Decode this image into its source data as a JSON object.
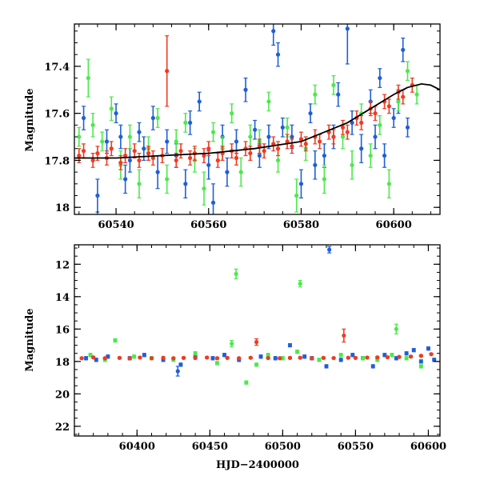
{
  "colors": {
    "blue": "#1f5fd6",
    "green": "#4de84d",
    "red": "#ee3b22",
    "model": "#000000",
    "frame": "#000000"
  },
  "chart_data": [
    {
      "type": "scatter",
      "title": "",
      "xlabel": "",
      "ylabel": "Magnitude",
      "xlim": [
        60531,
        60610
      ],
      "ylim": [
        18.03,
        17.22
      ],
      "y_inverted": true,
      "grid": false,
      "xticks": [
        "60540",
        "60560",
        "60580",
        "60600"
      ],
      "xtick_values": [
        60540,
        60560,
        60580,
        60600
      ],
      "yticks": [
        "17.4",
        "17.6",
        "17.8",
        "18"
      ],
      "ytick_values": [
        17.4,
        17.6,
        17.8,
        18.0
      ],
      "model_curve": {
        "x": [
          60531,
          60540,
          60550,
          60560,
          60570,
          60580,
          60590,
          60595,
          60600,
          60603,
          60606,
          60608,
          60610
        ],
        "y": [
          17.79,
          17.79,
          17.78,
          17.77,
          17.75,
          17.72,
          17.64,
          17.58,
          17.52,
          17.49,
          17.475,
          17.48,
          17.5
        ]
      },
      "series": [
        {
          "color": "blue",
          "x": [
            60533,
            60536,
            60538,
            60540,
            60541,
            60542,
            60543,
            60545,
            60546,
            60548,
            60549,
            60551,
            60553,
            60555,
            60556,
            60558,
            60560,
            60561,
            60563,
            60564,
            60566,
            60568,
            60570,
            60571,
            60573,
            60574,
            60575,
            60576,
            60578,
            60580,
            60582,
            60583,
            60585,
            60587,
            60588,
            60590,
            60591,
            60593,
            60595,
            60596,
            60597,
            60598,
            60600,
            60601,
            60602,
            60603
          ],
          "y": [
            17.62,
            17.95,
            17.72,
            17.6,
            17.7,
            17.88,
            17.8,
            17.68,
            17.75,
            17.62,
            17.85,
            17.72,
            17.78,
            17.9,
            17.64,
            17.55,
            17.82,
            17.98,
            17.7,
            17.85,
            17.72,
            17.5,
            17.67,
            17.78,
            17.7,
            17.25,
            17.35,
            17.66,
            17.7,
            17.9,
            17.6,
            17.82,
            17.78,
            17.7,
            17.52,
            17.24,
            17.64,
            17.75,
            17.55,
            17.7,
            17.45,
            17.78,
            17.62,
            17.55,
            17.33,
            17.66
          ],
          "err": [
            0.05,
            0.07,
            0.05,
            0.04,
            0.05,
            0.06,
            0.05,
            0.04,
            0.05,
            0.05,
            0.07,
            0.05,
            0.05,
            0.06,
            0.05,
            0.04,
            0.06,
            0.08,
            0.05,
            0.06,
            0.05,
            0.05,
            0.04,
            0.05,
            0.05,
            0.06,
            0.05,
            0.04,
            0.05,
            0.06,
            0.04,
            0.06,
            0.05,
            0.05,
            0.05,
            0.15,
            0.05,
            0.06,
            0.05,
            0.05,
            0.04,
            0.05,
            0.04,
            0.05,
            0.05,
            0.04
          ]
        },
        {
          "color": "green",
          "x": [
            60532,
            60534,
            60535,
            60537,
            60539,
            60541,
            60543,
            60545,
            60547,
            60549,
            60551,
            60553,
            60555,
            60557,
            60559,
            60561,
            60563,
            60565,
            60567,
            60569,
            60571,
            60573,
            60575,
            60577,
            60579,
            60581,
            60583,
            60585,
            60587,
            60589,
            60591,
            60593,
            60595,
            60597,
            60599,
            60601,
            60603,
            60605
          ],
          "y": [
            17.7,
            17.45,
            17.65,
            17.72,
            17.58,
            17.82,
            17.7,
            17.9,
            17.75,
            17.62,
            17.88,
            17.72,
            17.64,
            17.8,
            17.92,
            17.68,
            17.75,
            17.6,
            17.85,
            17.7,
            17.72,
            17.55,
            17.8,
            17.66,
            17.95,
            17.75,
            17.52,
            17.88,
            17.48,
            17.7,
            17.82,
            17.6,
            17.78,
            17.65,
            17.9,
            17.55,
            17.42,
            17.52
          ],
          "err": [
            0.04,
            0.08,
            0.05,
            0.04,
            0.05,
            0.06,
            0.05,
            0.06,
            0.05,
            0.04,
            0.06,
            0.05,
            0.04,
            0.05,
            0.07,
            0.04,
            0.05,
            0.04,
            0.06,
            0.05,
            0.05,
            0.04,
            0.05,
            0.04,
            0.07,
            0.05,
            0.04,
            0.06,
            0.04,
            0.05,
            0.06,
            0.04,
            0.05,
            0.04,
            0.06,
            0.04,
            0.04,
            0.04
          ]
        },
        {
          "color": "red",
          "x": [
            60532,
            60533,
            60535,
            60536,
            60538,
            60539,
            60541,
            60542,
            60544,
            60545,
            60547,
            60548,
            60550,
            60551,
            60553,
            60554,
            60556,
            60557,
            60559,
            60560,
            60562,
            60563,
            60565,
            60566,
            60568,
            60569,
            60571,
            60572,
            60574,
            60575,
            60577,
            60578,
            60580,
            60581,
            60583,
            60584,
            60586,
            60587,
            60589,
            60590,
            60592,
            60593,
            60595,
            60596,
            60598,
            60599,
            60601,
            60602,
            60604
          ],
          "y": [
            17.78,
            17.76,
            17.8,
            17.77,
            17.79,
            17.75,
            17.81,
            17.78,
            17.76,
            17.8,
            17.77,
            17.79,
            17.78,
            17.42,
            17.8,
            17.76,
            17.79,
            17.77,
            17.78,
            17.75,
            17.8,
            17.77,
            17.76,
            17.79,
            17.75,
            17.77,
            17.74,
            17.76,
            17.73,
            17.75,
            17.72,
            17.74,
            17.71,
            17.73,
            17.7,
            17.72,
            17.68,
            17.7,
            17.66,
            17.68,
            17.62,
            17.64,
            17.58,
            17.6,
            17.55,
            17.57,
            17.51,
            17.53,
            17.48
          ],
          "err": [
            0.03,
            0.03,
            0.03,
            0.03,
            0.03,
            0.03,
            0.03,
            0.03,
            0.03,
            0.03,
            0.03,
            0.03,
            0.03,
            0.15,
            0.03,
            0.03,
            0.03,
            0.03,
            0.03,
            0.03,
            0.03,
            0.03,
            0.03,
            0.03,
            0.03,
            0.03,
            0.03,
            0.03,
            0.03,
            0.03,
            0.03,
            0.03,
            0.03,
            0.03,
            0.03,
            0.03,
            0.03,
            0.03,
            0.03,
            0.03,
            0.03,
            0.03,
            0.03,
            0.03,
            0.03,
            0.03,
            0.03,
            0.03,
            0.03
          ]
        }
      ]
    },
    {
      "type": "scatter",
      "title": "",
      "xlabel": "HJD−2400000",
      "ylabel": "Magnitude",
      "xlim": [
        60357,
        60608
      ],
      "ylim": [
        22.6,
        10.8
      ],
      "y_inverted": true,
      "grid": false,
      "xticks": [
        "60400",
        "60450",
        "60500",
        "60550",
        "60600"
      ],
      "xtick_values": [
        60400,
        60450,
        60500,
        60550,
        60600
      ],
      "yticks": [
        "12",
        "14",
        "16",
        "18",
        "20",
        "22"
      ],
      "ytick_values": [
        12,
        14,
        16,
        18,
        20,
        22
      ],
      "series": [
        {
          "color": "blue",
          "x": [
            60365,
            60372,
            60380,
            60395,
            60405,
            60418,
            60428,
            60430,
            60440,
            60452,
            60460,
            60470,
            60485,
            60495,
            60505,
            60515,
            60520,
            60530,
            60532,
            60540,
            60548,
            60555,
            60562,
            60570,
            60578,
            60585,
            60590,
            60595,
            60600,
            60604
          ],
          "y": [
            17.8,
            17.9,
            17.7,
            17.8,
            17.6,
            17.9,
            18.6,
            18.2,
            17.7,
            17.8,
            17.6,
            17.9,
            17.7,
            17.8,
            17.0,
            17.7,
            17.8,
            18.3,
            11.1,
            17.9,
            17.6,
            17.8,
            18.3,
            17.6,
            17.8,
            17.5,
            17.3,
            18.0,
            17.2,
            17.9
          ],
          "err": [
            0.1,
            0.1,
            0.1,
            0.1,
            0.1,
            0.1,
            0.3,
            0.1,
            0.1,
            0.1,
            0.1,
            0.1,
            0.1,
            0.1,
            0.1,
            0.1,
            0.1,
            0.1,
            0.2,
            0.1,
            0.1,
            0.1,
            0.1,
            0.1,
            0.1,
            0.1,
            0.1,
            0.1,
            0.1,
            0.1
          ]
        },
        {
          "color": "green",
          "x": [
            60368,
            60378,
            60385,
            60398,
            60410,
            60425,
            60440,
            60455,
            60465,
            60468,
            60475,
            60482,
            60490,
            60500,
            60510,
            60512,
            60525,
            60540,
            60555,
            60565,
            60575,
            60578,
            60585,
            60595
          ],
          "y": [
            17.6,
            17.9,
            16.7,
            17.7,
            17.8,
            17.9,
            17.5,
            18.1,
            16.9,
            12.6,
            19.3,
            18.2,
            17.6,
            17.8,
            17.4,
            13.2,
            17.9,
            17.6,
            17.8,
            17.9,
            17.6,
            16.0,
            17.8,
            18.3
          ],
          "err": [
            0.1,
            0.1,
            0.1,
            0.1,
            0.1,
            0.1,
            0.1,
            0.1,
            0.2,
            0.3,
            0.1,
            0.1,
            0.1,
            0.1,
            0.1,
            0.2,
            0.1,
            0.1,
            0.1,
            0.1,
            0.1,
            0.3,
            0.1,
            0.1
          ]
        },
        {
          "color": "red",
          "x": [
            60362,
            60370,
            60378,
            60388,
            60395,
            60402,
            60410,
            60418,
            60425,
            60432,
            60440,
            60448,
            60455,
            60462,
            60470,
            60478,
            60482,
            60490,
            60498,
            60505,
            60512,
            60520,
            60528,
            60535,
            60542,
            60545,
            60550,
            60558,
            60565,
            60572,
            60580,
            60588,
            60595,
            60602
          ],
          "y": [
            17.8,
            17.75,
            17.8,
            17.78,
            17.8,
            17.76,
            17.8,
            17.77,
            17.8,
            17.78,
            17.79,
            17.76,
            17.8,
            17.78,
            17.8,
            17.77,
            16.8,
            17.79,
            17.8,
            17.78,
            17.77,
            17.8,
            17.78,
            17.79,
            16.4,
            17.77,
            17.78,
            17.76,
            17.75,
            17.74,
            17.72,
            17.7,
            17.65,
            17.55
          ],
          "err": [
            0.05,
            0.05,
            0.05,
            0.05,
            0.05,
            0.05,
            0.05,
            0.05,
            0.05,
            0.05,
            0.05,
            0.05,
            0.05,
            0.05,
            0.05,
            0.05,
            0.2,
            0.05,
            0.05,
            0.05,
            0.05,
            0.05,
            0.05,
            0.05,
            0.4,
            0.05,
            0.05,
            0.05,
            0.05,
            0.05,
            0.05,
            0.05,
            0.05,
            0.05
          ]
        }
      ]
    }
  ]
}
